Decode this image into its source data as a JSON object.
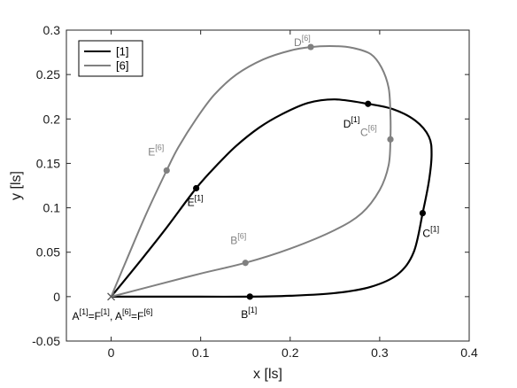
{
  "chart_data": {
    "type": "line",
    "xlabel": "x [ls]",
    "ylabel": "y [ls]",
    "xlim": [
      -0.05,
      0.4
    ],
    "ylim": [
      -0.05,
      0.3
    ],
    "xticks": [
      0,
      0.1,
      0.2,
      0.3,
      0.4
    ],
    "xtick_labels": [
      "0",
      "0.1",
      "0.2",
      "0.3",
      "0.4"
    ],
    "yticks": [
      -0.05,
      0,
      0.05,
      0.1,
      0.15,
      0.2,
      0.25,
      0.3
    ],
    "ytick_labels": [
      "-0.05",
      "0",
      "0.05",
      "0.1",
      "0.15",
      "0.2",
      "0.25",
      "0.3"
    ],
    "legend": {
      "placement": "top-left",
      "entries": [
        "[1]",
        "[6]"
      ]
    },
    "grid": false,
    "colors": {
      "series1": "#000000",
      "series6": "#808080",
      "axis": "#262626"
    },
    "series": [
      {
        "name": "[1]",
        "color": "#000000",
        "path": [
          [
            0,
            0
          ],
          [
            0.05,
            0
          ],
          [
            0.1,
            0
          ],
          [
            0.155,
            0
          ],
          [
            0.2,
            0.001
          ],
          [
            0.25,
            0.004
          ],
          [
            0.29,
            0.011
          ],
          [
            0.32,
            0.025
          ],
          [
            0.338,
            0.05
          ],
          [
            0.348,
            0.094
          ],
          [
            0.355,
            0.13
          ],
          [
            0.358,
            0.16
          ],
          [
            0.355,
            0.18
          ],
          [
            0.34,
            0.198
          ],
          [
            0.315,
            0.211
          ],
          [
            0.287,
            0.217
          ],
          [
            0.25,
            0.222
          ],
          [
            0.22,
            0.218
          ],
          [
            0.19,
            0.205
          ],
          [
            0.165,
            0.19
          ],
          [
            0.14,
            0.17
          ],
          [
            0.12,
            0.15
          ],
          [
            0.095,
            0.122
          ],
          [
            0.06,
            0.075
          ],
          [
            0.03,
            0.037
          ],
          [
            0,
            0
          ]
        ],
        "points": [
          {
            "label": "B",
            "x": 0.155,
            "y": 0
          },
          {
            "label": "C",
            "x": 0.348,
            "y": 0.094
          },
          {
            "label": "D",
            "x": 0.287,
            "y": 0.217
          },
          {
            "label": "E",
            "x": 0.095,
            "y": 0.122
          }
        ]
      },
      {
        "name": "[6]",
        "color": "#808080",
        "path": [
          [
            0,
            0
          ],
          [
            0.05,
            0.013
          ],
          [
            0.1,
            0.026
          ],
          [
            0.15,
            0.038
          ],
          [
            0.2,
            0.054
          ],
          [
            0.25,
            0.075
          ],
          [
            0.28,
            0.094
          ],
          [
            0.3,
            0.12
          ],
          [
            0.31,
            0.148
          ],
          [
            0.312,
            0.177
          ],
          [
            0.312,
            0.205
          ],
          [
            0.31,
            0.235
          ],
          [
            0.302,
            0.258
          ],
          [
            0.29,
            0.273
          ],
          [
            0.27,
            0.28
          ],
          [
            0.25,
            0.282
          ],
          [
            0.223,
            0.281
          ],
          [
            0.2,
            0.277
          ],
          [
            0.17,
            0.267
          ],
          [
            0.14,
            0.25
          ],
          [
            0.115,
            0.227
          ],
          [
            0.095,
            0.2
          ],
          [
            0.075,
            0.168
          ],
          [
            0.062,
            0.142
          ],
          [
            0.04,
            0.095
          ],
          [
            0.02,
            0.048
          ],
          [
            0,
            0
          ]
        ],
        "points": [
          {
            "label": "B",
            "x": 0.15,
            "y": 0.038
          },
          {
            "label": "C",
            "x": 0.312,
            "y": 0.177
          },
          {
            "label": "D",
            "x": 0.223,
            "y": 0.281
          },
          {
            "label": "E",
            "x": 0.062,
            "y": 0.142
          }
        ]
      }
    ],
    "annotations": [
      {
        "base": "B",
        "sup": "[1]",
        "series": "[1]"
      },
      {
        "base": "C",
        "sup": "[1]",
        "series": "[1]"
      },
      {
        "base": "D",
        "sup": "[1]",
        "series": "[1]"
      },
      {
        "base": "E",
        "sup": "[1]",
        "series": "[1]"
      },
      {
        "base": "B",
        "sup": "[6]",
        "series": "[6]"
      },
      {
        "base": "C",
        "sup": "[6]",
        "series": "[6]"
      },
      {
        "base": "D",
        "sup": "[6]",
        "series": "[6]"
      },
      {
        "base": "E",
        "sup": "[6]",
        "series": "[6]"
      }
    ],
    "origin_label": [
      {
        "text": "A",
        "sup": false
      },
      {
        "text": "[1]",
        "sup": true
      },
      {
        "text": "=F",
        "sup": false
      },
      {
        "text": "[1]",
        "sup": true
      },
      {
        "text": ", A",
        "sup": false
      },
      {
        "text": "[6]",
        "sup": true
      },
      {
        "text": "=F",
        "sup": false
      },
      {
        "text": "[6]",
        "sup": true
      }
    ]
  }
}
